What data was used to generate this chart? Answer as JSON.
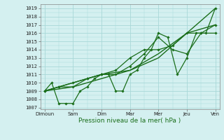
{
  "xlabel": "Pression niveau de la mer( hPa )",
  "xtick_labels": [
    "Dimoun",
    "Sam",
    "Dim",
    "Mar",
    "Mer",
    "Jeu",
    "Ven"
  ],
  "xtick_positions": [
    0,
    1,
    2,
    3,
    4,
    5,
    6
  ],
  "ylim_min": 1006.8,
  "ylim_max": 1019.5,
  "yticks": [
    1007,
    1008,
    1009,
    1010,
    1011,
    1012,
    1013,
    1014,
    1015,
    1016,
    1017,
    1018,
    1019
  ],
  "bg_color": "#d4f0f0",
  "grid_color": "#a8d8d8",
  "line_color": "#1a6e1a",
  "lines": [
    {
      "x": [
        0,
        1,
        2,
        3,
        4,
        5,
        6
      ],
      "y": [
        1009.0,
        1009.5,
        1010.5,
        1011.5,
        1013.0,
        1016.0,
        1019.0
      ],
      "marker": false,
      "lw": 1.0
    },
    {
      "x": [
        0,
        1,
        2,
        3,
        4,
        5,
        6
      ],
      "y": [
        1009.0,
        1010.0,
        1011.0,
        1011.5,
        1013.5,
        1016.0,
        1017.0
      ],
      "marker": false,
      "lw": 1.0
    },
    {
      "x": [
        0,
        0.25,
        0.5,
        0.75,
        1.0,
        1.25,
        1.5,
        1.75,
        2.0,
        2.25,
        2.5,
        2.75,
        3.0,
        3.25,
        3.5,
        3.75,
        4.0,
        4.33,
        4.67,
        5.0,
        5.33,
        5.67,
        6.0
      ],
      "y": [
        1009.0,
        1010.0,
        1007.5,
        1007.5,
        1007.5,
        1009.0,
        1009.5,
        1010.5,
        1011.0,
        1011.0,
        1009.0,
        1009.0,
        1011.0,
        1011.5,
        1013.0,
        1014.0,
        1016.0,
        1015.5,
        1011.0,
        1013.0,
        1016.0,
        1016.0,
        1019.0
      ],
      "marker": true,
      "lw": 0.9
    },
    {
      "x": [
        0,
        0.5,
        1.0,
        1.5,
        2.0,
        2.5,
        3.0,
        3.5,
        4.0,
        4.5,
        5.0,
        5.5,
        6.0
      ],
      "y": [
        1009.0,
        1009.5,
        1009.5,
        1010.5,
        1011.0,
        1011.0,
        1012.0,
        1013.5,
        1015.5,
        1014.0,
        1013.5,
        1016.0,
        1017.0
      ],
      "marker": true,
      "lw": 0.9
    },
    {
      "x": [
        0,
        0.5,
        1.0,
        1.5,
        2.0,
        2.5,
        3.0,
        3.5,
        4.0,
        4.5,
        5.0,
        5.5,
        6.0
      ],
      "y": [
        1009.0,
        1009.5,
        1010.0,
        1010.5,
        1011.0,
        1011.5,
        1013.0,
        1014.0,
        1014.0,
        1014.5,
        1016.0,
        1016.0,
        1016.0
      ],
      "marker": true,
      "lw": 0.9
    }
  ]
}
